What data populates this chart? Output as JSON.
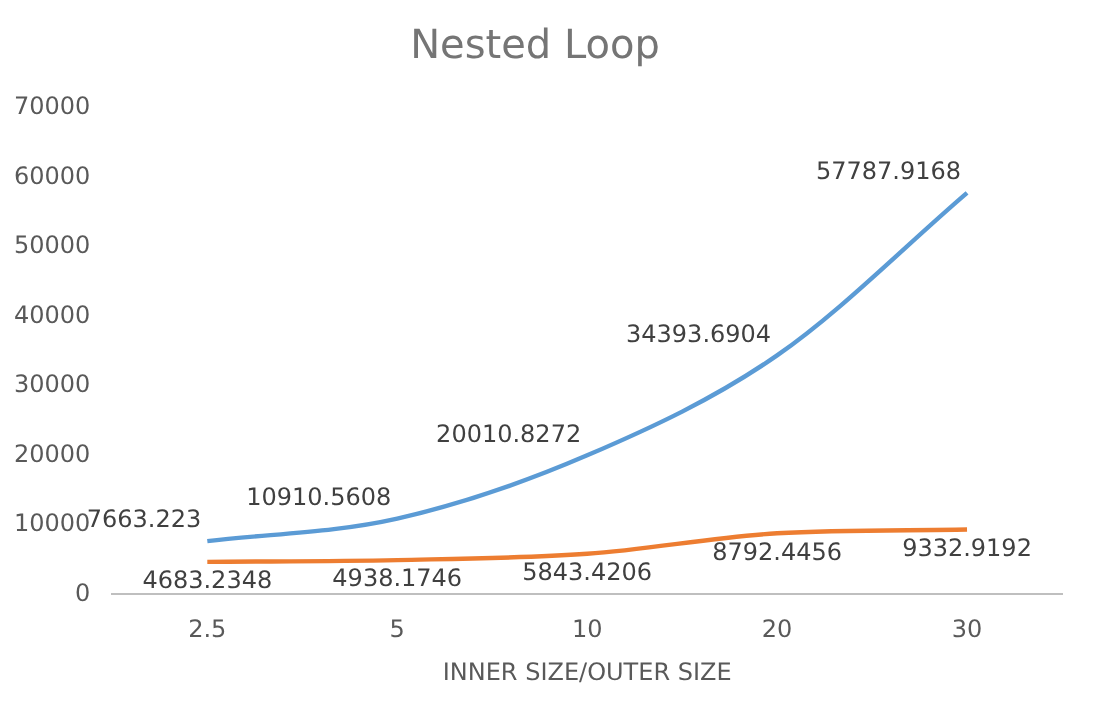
{
  "chart_data": {
    "type": "line",
    "title": "Nested Loop",
    "xlabel": "INNER SIZE/OUTER SIZE",
    "categories": [
      "2.5",
      "5",
      "10",
      "20",
      "30"
    ],
    "series": [
      {
        "color": "#5b9bd5",
        "values": [
          7663.223,
          10910.5608,
          20010.8272,
          34393.6904,
          57787.9168
        ]
      },
      {
        "color": "#ed7d31",
        "values": [
          4683.2348,
          4938.1746,
          5843.4206,
          8792.4456,
          9332.9192
        ]
      }
    ],
    "ylim": [
      0,
      70000
    ],
    "yticks": [
      0,
      10000,
      20000,
      30000,
      40000,
      50000,
      60000,
      70000
    ],
    "grid": false,
    "legend": false,
    "data_labels": true,
    "marker": "none",
    "line_style": "solid"
  }
}
